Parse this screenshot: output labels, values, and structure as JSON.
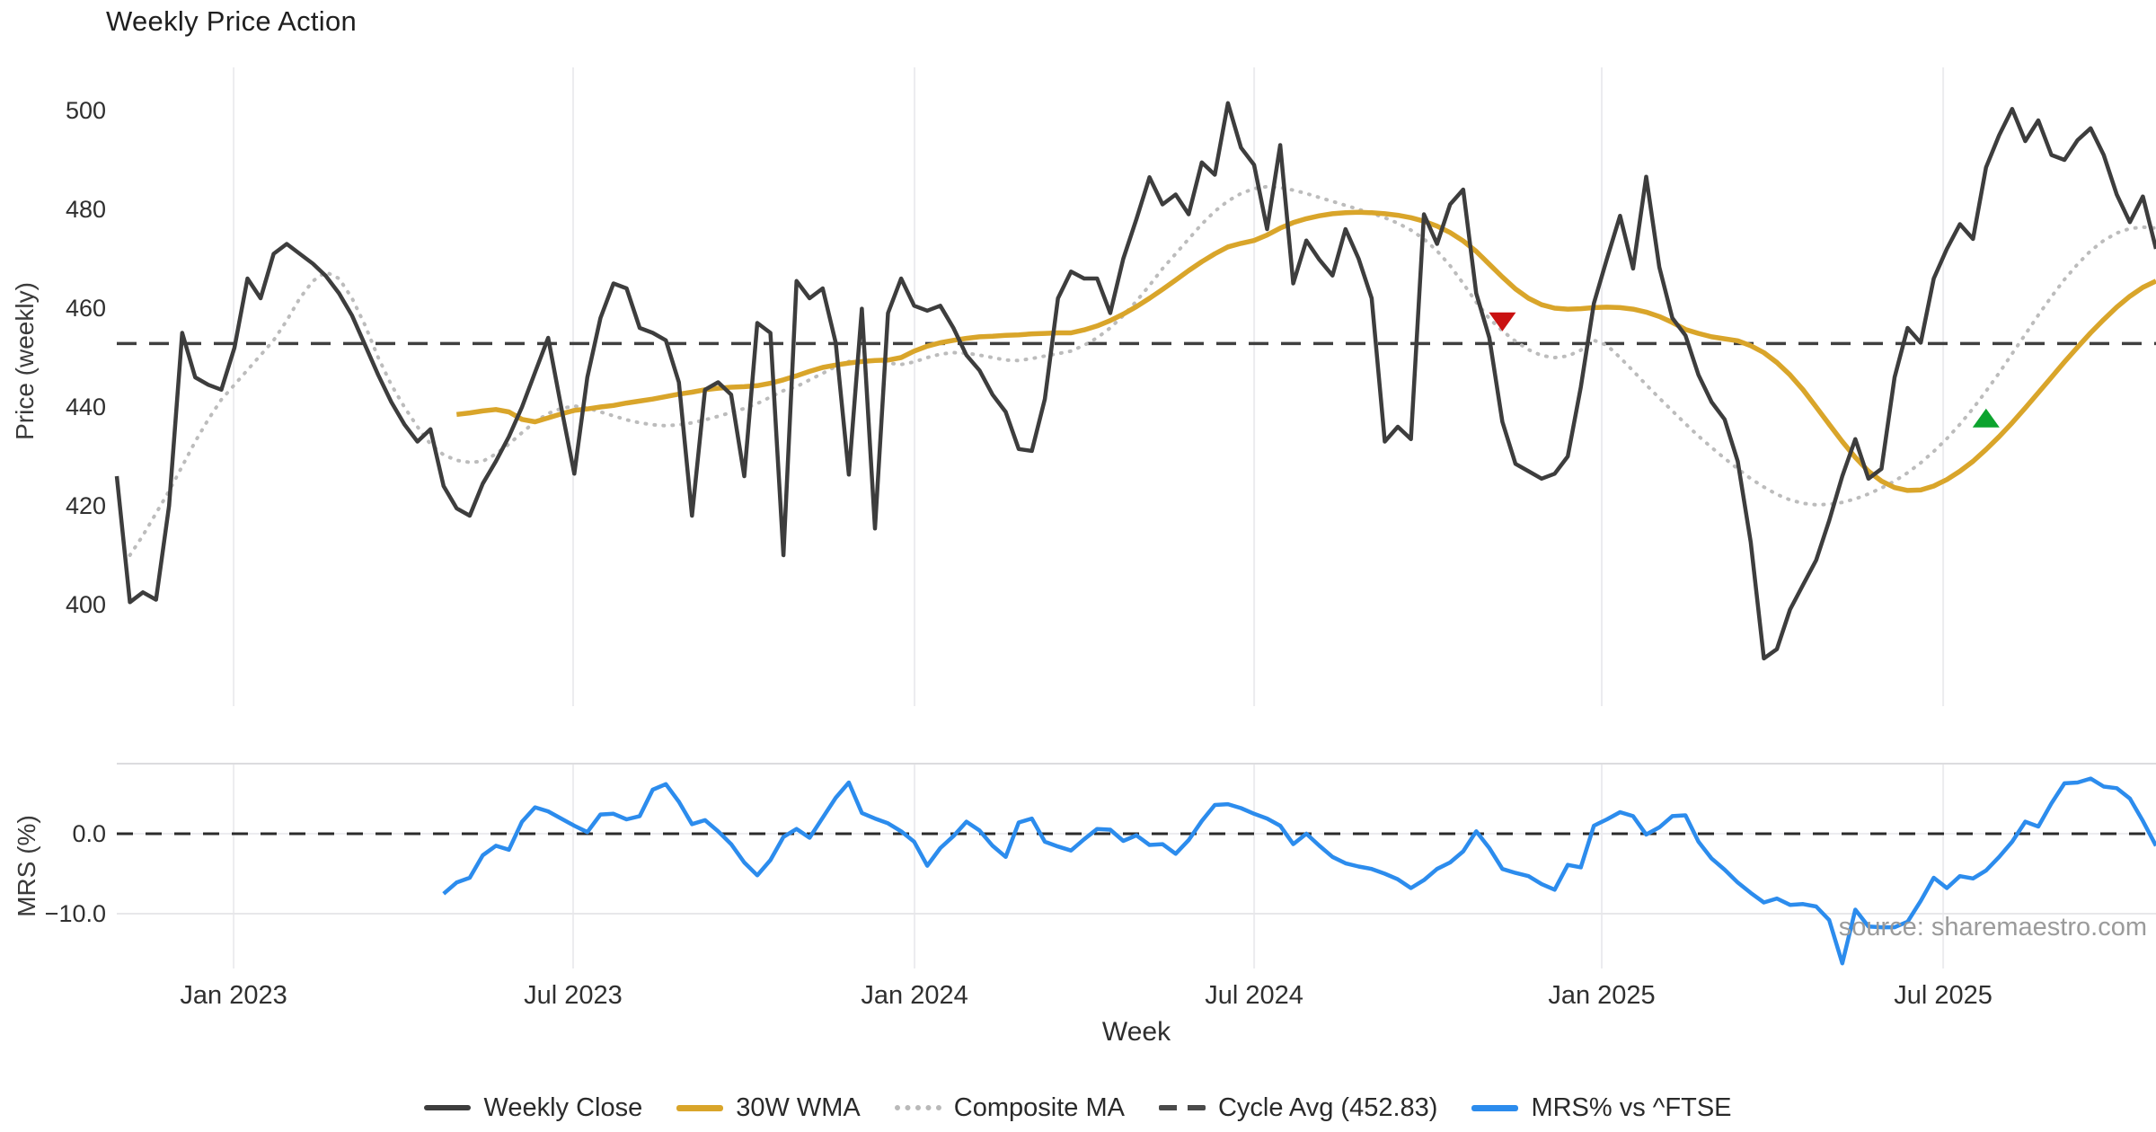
{
  "title": "Weekly Price Action",
  "source_note": "source: sharemaestro.com",
  "chart_data": {
    "type": "line",
    "title": "Weekly Price Action",
    "xlabel": "Week",
    "panels": [
      {
        "name": "price",
        "ylabel": "Price (weekly)",
        "yticks": [
          {
            "label": "400",
            "value": 400
          },
          {
            "label": "420",
            "value": 420
          },
          {
            "label": "440",
            "value": 440
          },
          {
            "label": "460",
            "value": 460
          },
          {
            "label": "480",
            "value": 480
          },
          {
            "label": "500",
            "value": 500
          }
        ]
      },
      {
        "name": "mrs",
        "ylabel": "MRS (%)",
        "yticks": [
          {
            "label": "0.0",
            "value": 0
          },
          {
            "label": "−10.0",
            "value": -10
          }
        ]
      }
    ],
    "x_ticks": [
      {
        "label": "Jan 2023",
        "week": 8.94
      },
      {
        "label": "Jul 2023",
        "week": 34.91
      },
      {
        "label": "Jan 2024",
        "week": 61.03
      },
      {
        "label": "Jul 2024",
        "week": 87.01
      },
      {
        "label": "Jan 2025",
        "week": 113.6
      },
      {
        "label": "Jul 2025",
        "week": 139.72
      }
    ],
    "colors": {
      "close": "#3d3d3d",
      "wma": "#d9a52a",
      "composite": "#bcbcbc",
      "cycle": "#3f3f3f",
      "mrs": "#2c8ced",
      "marker_down": "#c91111",
      "marker_up": "#0ca32e",
      "grid": "#ececef",
      "panel_line": "#dcdcdf",
      "panel_line_light": "#e7e7ea",
      "zero_under": "#ececef"
    },
    "cycle_avg": {
      "label": "Cycle Avg (452.83)",
      "value": 452.83
    },
    "legend": [
      {
        "label": "Weekly Close"
      },
      {
        "label": "30W WMA"
      },
      {
        "label": "Composite MA"
      },
      {
        "label": "Cycle Avg (452.83)"
      },
      {
        "label": "MRS% vs ^FTSE"
      }
    ],
    "series": [
      {
        "name": "Weekly Close",
        "panel": "price",
        "start": 0,
        "values": [
          426,
          400.5,
          402.5,
          401,
          420,
          455,
          446,
          444.5,
          443.5,
          452,
          466,
          462,
          471,
          473,
          471,
          469,
          466.5,
          463,
          458.5,
          452.5,
          446.5,
          441,
          436.5,
          433,
          435.5,
          424,
          419.5,
          418,
          424.5,
          429,
          434,
          440,
          447,
          454,
          440,
          426.5,
          446,
          458,
          465,
          464,
          456,
          455,
          453.5,
          445,
          418,
          443.5,
          445,
          442.5,
          426,
          457,
          455,
          410,
          465.5,
          462,
          464,
          453,
          426.3,
          459.9,
          415.4,
          459,
          466,
          460.5,
          459.5,
          460.5,
          456,
          450.5,
          447.4,
          442.5,
          439,
          431.5,
          431.1,
          441.6,
          462,
          467.4,
          466,
          466,
          459,
          470,
          478,
          486.5,
          481,
          483,
          479,
          489.5,
          487,
          501.5,
          492.5,
          489,
          476,
          493,
          465,
          473.7,
          469.8,
          466.6,
          476,
          470,
          462,
          433,
          436,
          433.5,
          479,
          473,
          481,
          484,
          463,
          454,
          437,
          428.5,
          427,
          425.5,
          426.5,
          430,
          444,
          461,
          470,
          478.7,
          468,
          486.6,
          468.3,
          458,
          454.5,
          446.5,
          441,
          437.5,
          429,
          412.6,
          389.1,
          391,
          399,
          404,
          409,
          417,
          426,
          433.5,
          425.5,
          427.5,
          446,
          456,
          453,
          466,
          472,
          477,
          474,
          488.5,
          495,
          500.3,
          493.8,
          498,
          491,
          490,
          494,
          496.4,
          491,
          483,
          477.4,
          482.6,
          472
        ]
      },
      {
        "name": "30W WMA",
        "panel": "price",
        "start": 26,
        "values": [
          438.5,
          438.8,
          439.2,
          439.5,
          439,
          437.5,
          437,
          437.8,
          438.6,
          439.3,
          439.6,
          440,
          440.3,
          440.8,
          441.2,
          441.6,
          442.1,
          442.6,
          443,
          443.5,
          443.8,
          444,
          444.1,
          444.3,
          444.8,
          445.5,
          446.3,
          447.2,
          448,
          448.5,
          448.9,
          449.2,
          449.4,
          449.5,
          450,
          451.3,
          452.3,
          453,
          453.5,
          453.9,
          454.2,
          454.3,
          454.5,
          454.6,
          454.8,
          454.9,
          455,
          455,
          455.6,
          456.4,
          457.5,
          458.8,
          460.3,
          462,
          463.8,
          465.7,
          467.6,
          469.4,
          471,
          472.4,
          473.1,
          473.7,
          474.8,
          476.2,
          477.3,
          478.1,
          478.7,
          479.1,
          479.3,
          479.4,
          479.3,
          479.1,
          478.8,
          478.3,
          477.6,
          476.6,
          475.3,
          473.6,
          471.5,
          468.9,
          466.3,
          463.9,
          462,
          460.7,
          460,
          459.8,
          459.9,
          460.1,
          460.2,
          460.1,
          459.8,
          459.2,
          458.3,
          457.1,
          455.7,
          454.9,
          454.2,
          453.8,
          453.4,
          452.4,
          451,
          449,
          446.5,
          443.5,
          440,
          436.5,
          433,
          429.8,
          427,
          425,
          423.7,
          423.1,
          423.2,
          424,
          425.3,
          427,
          429,
          431.4,
          434,
          436.8,
          439.8,
          442.9,
          446,
          449.1,
          452.1,
          455,
          457.7,
          460.2,
          462.4,
          464.2,
          465.5
        ]
      },
      {
        "name": "Composite MA",
        "panel": "price",
        "start": 1,
        "style": "dotted",
        "values": [
          410,
          414,
          418.5,
          423,
          428,
          433,
          437.5,
          441.5,
          444.5,
          447.5,
          450.5,
          453.5,
          457.5,
          462,
          465.5,
          467.3,
          466,
          462,
          456.5,
          450,
          444.5,
          440,
          436,
          432.5,
          430.3,
          429.2,
          428.8,
          429,
          430.5,
          432.5,
          434.8,
          437,
          438.7,
          439.7,
          440.2,
          439.8,
          439,
          438.2,
          437.4,
          436.8,
          436.4,
          436.2,
          436.4,
          436.8,
          437.4,
          438.1,
          438.9,
          439.7,
          440.7,
          442,
          443.3,
          444.1,
          445.5,
          446.8,
          448.2,
          449.2,
          449.5,
          449.4,
          448.9,
          448.6,
          449.1,
          450,
          450.7,
          451,
          450.9,
          450.5,
          450,
          449.5,
          449.4,
          449.8,
          450.3,
          450.8,
          451.3,
          452.5,
          454,
          456,
          458.5,
          461.4,
          464.6,
          468,
          471,
          474,
          477,
          479.6,
          481.7,
          483.2,
          484.2,
          484.6,
          484.4,
          483.9,
          483.2,
          482.4,
          481.6,
          480.8,
          480,
          479.2,
          478.3,
          477.2,
          475.8,
          474,
          471.6,
          468.6,
          465,
          461.2,
          457.9,
          455.4,
          453.3,
          451.6,
          450.4,
          450,
          450.3,
          451.5,
          453.5,
          452.5,
          450,
          447.3,
          444.5,
          441.8,
          439.2,
          436.6,
          434.1,
          431.8,
          429.6,
          427.5,
          425.5,
          423.8,
          422.3,
          421.2,
          420.5,
          420.2,
          420.3,
          420.7,
          421.4,
          422.4,
          423.6,
          425,
          426.7,
          428.7,
          431,
          433.6,
          436.5,
          439.7,
          443.2,
          446.9,
          450.8,
          454.7,
          458.6,
          462.3,
          465.8,
          468.9,
          471.6,
          473.7,
          475.2,
          476.1,
          476.4,
          476.2
        ]
      },
      {
        "name": "MRS% vs ^FTSE",
        "panel": "mrs",
        "start": 25,
        "values": [
          -7.5,
          -6.1,
          -5.5,
          -2.7,
          -1.5,
          -2,
          1.5,
          3.3,
          2.8,
          1.9,
          1,
          0.2,
          2.4,
          2.5,
          1.8,
          2.2,
          5.5,
          6.2,
          4,
          1.2,
          1.7,
          0.3,
          -1.3,
          -3.6,
          -5.2,
          -3.3,
          -0.4,
          0.6,
          -0.5,
          2,
          4.5,
          6.4,
          2.6,
          1.9,
          1.3,
          0.3,
          -1,
          -4,
          -1.8,
          -0.3,
          1.5,
          0.4,
          -1.5,
          -2.9,
          1.4,
          1.9,
          -1,
          -1.6,
          -2.1,
          -0.7,
          0.6,
          0.5,
          -0.9,
          -0.2,
          -1.4,
          -1.3,
          -2.5,
          -0.8,
          1.6,
          3.6,
          3.7,
          3.2,
          2.5,
          1.9,
          1,
          -1.3,
          0,
          -1.5,
          -2.9,
          -3.7,
          -4.1,
          -4.4,
          -5,
          -5.7,
          -6.8,
          -5.8,
          -4.4,
          -3.6,
          -2.2,
          0.3,
          -1.8,
          -4.4,
          -4.9,
          -5.3,
          -6.3,
          -7,
          -3.9,
          -4.2,
          1,
          1.8,
          2.7,
          2.2,
          -0.1,
          0.8,
          2.2,
          2.3,
          -1,
          -3.1,
          -4.5,
          -6.1,
          -7.4,
          -8.6,
          -8.1,
          -8.9,
          -8.8,
          -9.1,
          -10.8,
          -16.2,
          -9.5,
          -11.6,
          -11.7,
          -11.7,
          -11,
          -8.4,
          -5.5,
          -6.8,
          -5.3,
          -5.6,
          -4.6,
          -2.9,
          -1,
          1.5,
          0.9,
          3.8,
          6.3,
          6.4,
          6.9,
          5.9,
          5.7,
          4.4,
          1.6,
          -1.5
        ]
      }
    ],
    "markers": [
      {
        "shape": "triangle-down",
        "week": 106,
        "value": 457.5
      },
      {
        "shape": "triangle-up",
        "week": 143,
        "value": 437.5
      }
    ]
  }
}
